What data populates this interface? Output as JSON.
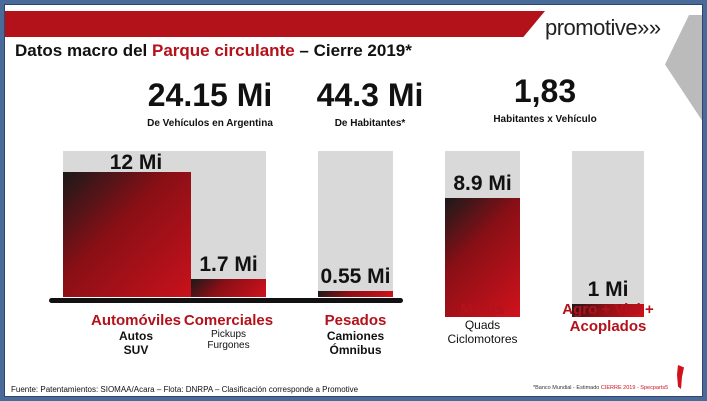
{
  "header": {
    "logo": "promotive»»",
    "title_prefix": "Datos macro del ",
    "title_highlight": "Parque circulante",
    "title_suffix": " – Cierre 2019*"
  },
  "stats": [
    {
      "value": "24.15 Mi",
      "label": "De Vehículos  en Argentina"
    },
    {
      "value": "44.3 Mi",
      "label": "De Habitantes*"
    },
    {
      "value": "1,83",
      "label": "Habitantes x Vehículo"
    }
  ],
  "chart_data": {
    "type": "bar",
    "categories": [
      "Automóviles",
      "Comerciales",
      "Pesados",
      "Motos",
      "Agro + Vial + Acoplados"
    ],
    "values": [
      12,
      1.7,
      0.55,
      8.9,
      1
    ],
    "data_labels": [
      "12 Mi",
      "1.7 Mi",
      "0.55 Mi",
      "8.9 Mi",
      "1 Mi"
    ],
    "unit": "Mi",
    "subcategories": [
      [
        "Autos",
        "SUV"
      ],
      [
        "Pickups",
        "Furgones"
      ],
      [
        "Camiones",
        "Ómnibus"
      ],
      [
        "Quads",
        "Ciclomotores"
      ],
      []
    ],
    "colors": {
      "fill": "#c8121c",
      "background": "#d9d9d9"
    }
  },
  "footer": {
    "source": "Fuente: Patentamientos: SIOMAA/Acara – Flota: DNRPA – Clasificación corresponde a Promotive",
    "note_prefix": "*Banco Mundial - Estimado ",
    "note_highlight": "CIERRE 2019 - Specparts5"
  }
}
